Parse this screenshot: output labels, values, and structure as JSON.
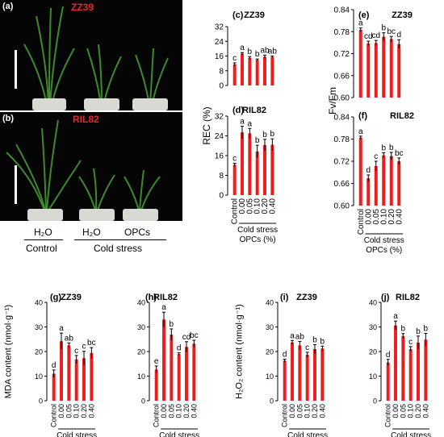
{
  "photos": [
    {
      "tag": "(a)",
      "name": "ZZ39"
    },
    {
      "tag": "(b)",
      "name": "RIL82"
    }
  ],
  "photo_legend": {
    "h2o_control": "H₂O",
    "h2o_cold": "H₂O",
    "opcs": "OPCs",
    "control": "Control",
    "cold_stress": "Cold stress"
  },
  "axis_titles": {
    "rec": "REC (%)",
    "fvfm": "Fv/Fm",
    "mda": "MDA content (nmol·g⁻¹)",
    "h2o2": "H₂O₂ content (nmol·g⁻¹)"
  },
  "group_labels": {
    "cold_stress": "Cold stress",
    "opcs": "OPCs (%)"
  },
  "colors": {
    "bar": "#ee1c1c",
    "name_label": "#e8262c"
  },
  "chart_data": [
    {
      "id": "c",
      "tag": "(c)",
      "title": "ZZ39",
      "type": "bar",
      "categories": [
        "Control",
        "0.00",
        "0.05",
        "0.10",
        "0.20",
        "0.40"
      ],
      "values": [
        11.5,
        17.3,
        15.0,
        13.9,
        15.6,
        15.5
      ],
      "errors": [
        0.8,
        0.6,
        0.7,
        0.5,
        0.9,
        0.5
      ],
      "letters": [
        "c",
        "a",
        "b",
        "b",
        "ab",
        "ab"
      ],
      "ylim": [
        0,
        32
      ],
      "yticks": [
        "0",
        "8",
        "16",
        "24",
        "32"
      ]
    },
    {
      "id": "d",
      "tag": "(d)",
      "title": "RIL82",
      "type": "bar",
      "categories": [
        "Control",
        "0.00",
        "0.05",
        "0.10",
        "0.20",
        "0.40"
      ],
      "values": [
        12.3,
        25.4,
        25.0,
        17.7,
        20.3,
        20.4
      ],
      "errors": [
        0.6,
        2.5,
        2.0,
        2.5,
        2.3,
        2.4
      ],
      "letters": [
        "c",
        "a",
        "a",
        "b",
        "b",
        "b"
      ],
      "ylim": [
        0,
        32
      ],
      "yticks": [
        "0",
        "8",
        "16",
        "24",
        "32"
      ]
    },
    {
      "id": "e",
      "tag": "(e)",
      "title": "ZZ39",
      "type": "bar",
      "categories": [
        "Control",
        "0.00",
        "0.05",
        "0.10",
        "0.20",
        "0.40"
      ],
      "values": [
        0.785,
        0.748,
        0.749,
        0.766,
        0.76,
        0.746
      ],
      "errors": [
        0.005,
        0.006,
        0.007,
        0.011,
        0.007,
        0.012
      ],
      "letters": [
        "a",
        "cd",
        "cd",
        "b",
        "bc",
        "d"
      ],
      "ylim": [
        0.6,
        0.84
      ],
      "yticks": [
        "0.60",
        "0.66",
        "0.72",
        "0.78",
        "0.84"
      ]
    },
    {
      "id": "f",
      "tag": "(f)",
      "title": "RIL82",
      "type": "bar",
      "categories": [
        "Control",
        "0.00",
        "0.05",
        "0.10",
        "0.20",
        "0.40"
      ],
      "values": [
        0.784,
        0.674,
        0.707,
        0.736,
        0.734,
        0.72
      ],
      "errors": [
        0.004,
        0.009,
        0.013,
        0.007,
        0.01,
        0.009
      ],
      "letters": [
        "a",
        "d",
        "c",
        "b",
        "b",
        "bc"
      ],
      "ylim": [
        0.6,
        0.84
      ],
      "yticks": [
        "0.60",
        "0.66",
        "0.72",
        "0.78",
        "0.84"
      ]
    },
    {
      "id": "g",
      "tag": "(g)",
      "title": "ZZ39",
      "type": "bar",
      "categories": [
        "Control",
        "0.00",
        "0.05",
        "0.10",
        "0.20",
        "0.40"
      ],
      "values": [
        11.0,
        24.2,
        22.5,
        16.8,
        17.3,
        19.4
      ],
      "errors": [
        1.5,
        3.3,
        1.0,
        1.6,
        2.8,
        2.2
      ],
      "letters": [
        "d",
        "a",
        "ab",
        "c",
        "c",
        "bc"
      ],
      "ylim": [
        0,
        40
      ],
      "yticks": [
        "0",
        "10",
        "20",
        "30",
        "40"
      ]
    },
    {
      "id": "h",
      "tag": "(h)",
      "title": "RIL82",
      "type": "bar",
      "categories": [
        "Control",
        "0.00",
        "0.05",
        "0.10",
        "0.20",
        "0.40"
      ],
      "values": [
        12.7,
        33.0,
        26.9,
        19.0,
        21.9,
        23.2
      ],
      "errors": [
        1.4,
        3.0,
        2.3,
        0.5,
        2.1,
        1.4
      ],
      "letters": [
        "e",
        "a",
        "b",
        "d",
        "cd",
        "bc"
      ],
      "ylim": [
        0,
        40
      ],
      "yticks": [
        "0",
        "10",
        "20",
        "30",
        "40"
      ]
    },
    {
      "id": "i",
      "tag": "(i)",
      "title": "ZZ39",
      "type": "bar",
      "categories": [
        "Control",
        "0.00",
        "0.05",
        "0.10",
        "0.20",
        "0.40"
      ],
      "values": [
        16.3,
        23.7,
        22.5,
        18.7,
        21.0,
        21.2
      ],
      "errors": [
        0.6,
        0.8,
        1.6,
        1.0,
        1.8,
        1.0
      ],
      "letters": [
        "d",
        "a",
        "ab",
        "c",
        "b",
        "b"
      ],
      "ylim": [
        0,
        40
      ],
      "yticks": [
        "0",
        "10",
        "20",
        "30",
        "40"
      ]
    },
    {
      "id": "j",
      "tag": "(j)",
      "title": "RIL82",
      "type": "bar",
      "categories": [
        "Control",
        "0.00",
        "0.05",
        "0.10",
        "0.20",
        "0.40"
      ],
      "values": [
        15.6,
        30.6,
        26.3,
        21.0,
        23.6,
        24.8
      ],
      "errors": [
        1.2,
        1.8,
        1.0,
        1.0,
        2.7,
        2.6
      ],
      "letters": [
        "d",
        "a",
        "b",
        "c",
        "b",
        "b"
      ],
      "ylim": [
        0,
        40
      ],
      "yticks": [
        "0",
        "10",
        "20",
        "30",
        "40"
      ]
    }
  ]
}
